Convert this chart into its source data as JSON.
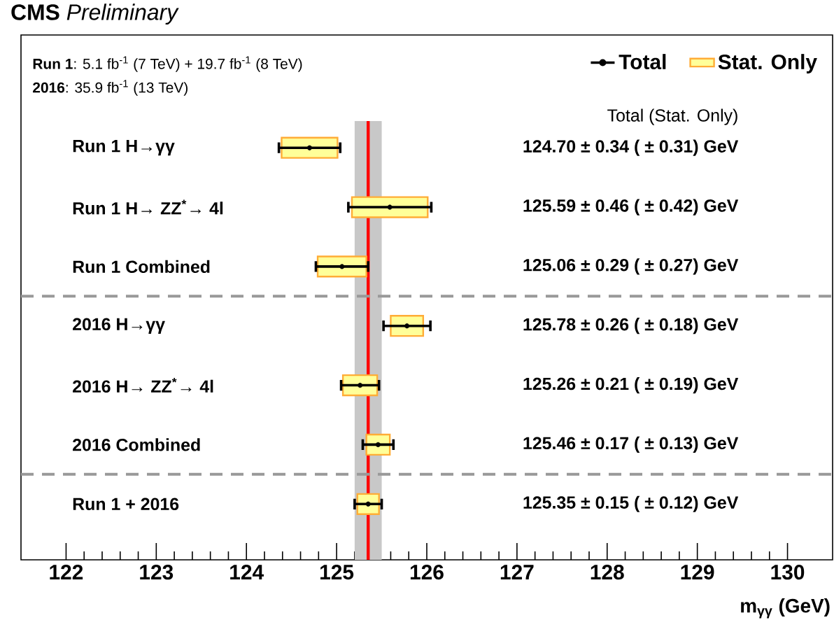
{
  "chart_data": {
    "type": "scatter",
    "title": "**CMS** *Preliminary*",
    "xlabel": "m$_{γγ}$ (GeV)",
    "categories": [
      "Run 1 H→γγ",
      "Run 1 H→ ZZ$^{*}$→ 4l",
      "Run 1 Combined",
      "2016 H→γγ",
      "2016 H→ ZZ$^{*}$→ 4l",
      "2016 Combined",
      "Run 1 + 2016"
    ],
    "series": [
      {
        "name": "Total",
        "color": "#000000",
        "marker": "circle",
        "values": [
          124.7,
          125.59,
          125.06,
          125.78,
          125.26,
          125.46,
          125.35
        ],
        "errors": [
          0.34,
          0.46,
          0.29,
          0.26,
          0.21,
          0.17,
          0.15
        ]
      },
      {
        "name": "Stat. Only",
        "type": "bar",
        "color": "#ffff99",
        "base": [
          124.39,
          125.17,
          124.79,
          125.6,
          125.07,
          125.33,
          125.23
        ],
        "values": [
          0.62,
          0.84,
          0.54,
          0.36,
          0.38,
          0.26,
          0.24
        ]
      }
    ],
    "xlim": [
      121.5,
      130.5
    ],
    "xticks": [
      122,
      123,
      124,
      125,
      126,
      127,
      128,
      129,
      130
    ],
    "tick_labels": "x",
    "legend": "top right",
    "grid": false,
    "orientation": "horizontal",
    "ref_lines": [
      {
        "axis": "x",
        "value": 125.35,
        "color": "#ff0000"
      }
    ],
    "bands": [
      {
        "axis": "x",
        "from": 125.2,
        "to": 125.5,
        "color": "#c8c8c8"
      }
    ],
    "annotations": [
      "**Run 1**: 5.1 fb$^{-1}$ (7 TeV) + 19.7 fb$^{-1}$ (8 TeV)",
      "**2016**: 35.9 fb$^{-1}$ (13 TeV)",
      "Total  (Stat. Only)",
      "124.70 ± 0.34 ( ± 0.31) GeV",
      "125.59 ± 0.46 ( ± 0.42) GeV",
      "125.06 ± 0.29 ( ± 0.27) GeV",
      "125.78 ± 0.26 ( ± 0.18) GeV",
      "125.26 ± 0.21 ( ± 0.19) GeV",
      "125.46 ± 0.17 ( ± 0.13) GeV",
      "125.35 ± 0.15 ( ± 0.12) GeV"
    ]
  }
}
